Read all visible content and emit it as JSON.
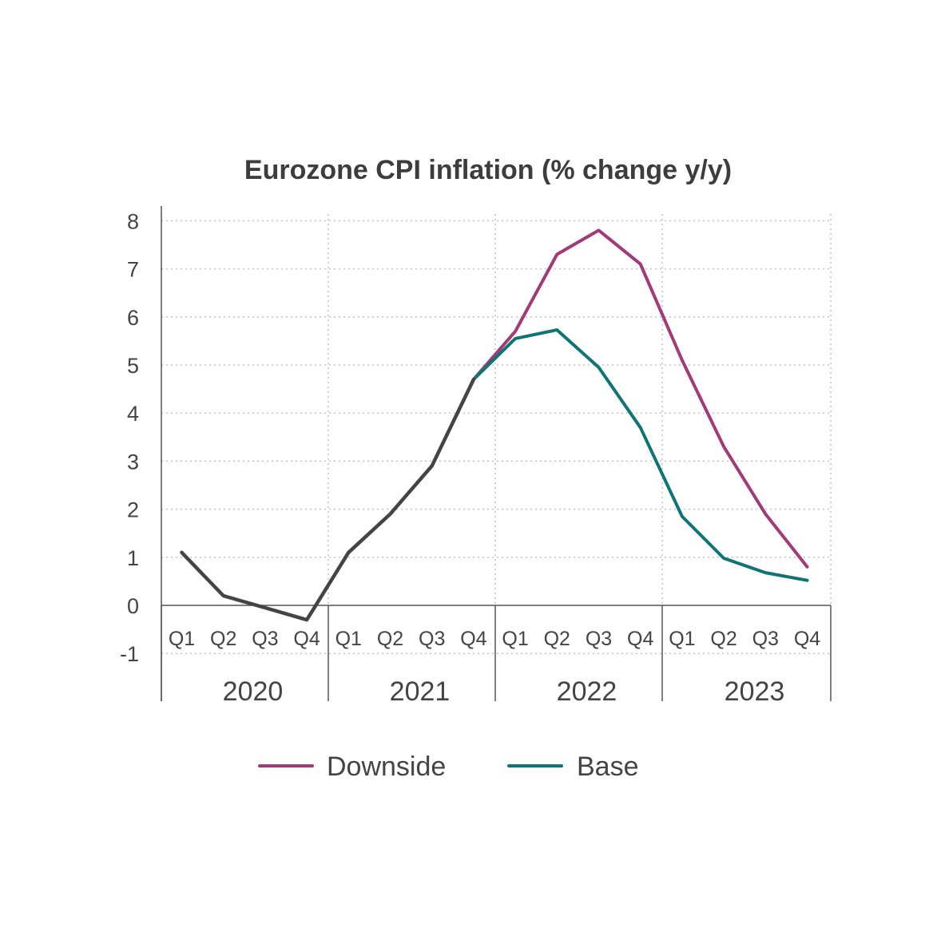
{
  "chart_data": {
    "type": "line",
    "title": "Eurozone CPI inflation (% change y/y)",
    "xlabel": "",
    "ylabel": "",
    "ylim": [
      -1,
      8
    ],
    "yticks": [
      "8",
      "7",
      "6",
      "5",
      "4",
      "3",
      "2",
      "1",
      "0",
      "-1"
    ],
    "grid": true,
    "legend_placement": "bottom-center",
    "years": [
      "2020",
      "2021",
      "2022",
      "2023"
    ],
    "quarters": [
      "Q1",
      "Q2",
      "Q3",
      "Q4"
    ],
    "history": {
      "color": "#444444",
      "values": [
        1.1,
        0.2,
        -0.05,
        -0.3,
        1.1,
        1.9,
        2.9,
        4.7
      ]
    },
    "series": [
      {
        "name": "Downside",
        "color": "#a33a78",
        "values": [
          4.7,
          5.7,
          7.3,
          7.8,
          7.1,
          5.1,
          3.3,
          1.9,
          0.8
        ]
      },
      {
        "name": "Base",
        "color": "#0e7474",
        "values": [
          4.7,
          5.55,
          5.73,
          4.95,
          3.7,
          1.85,
          0.98,
          0.68,
          0.52
        ]
      }
    ]
  }
}
